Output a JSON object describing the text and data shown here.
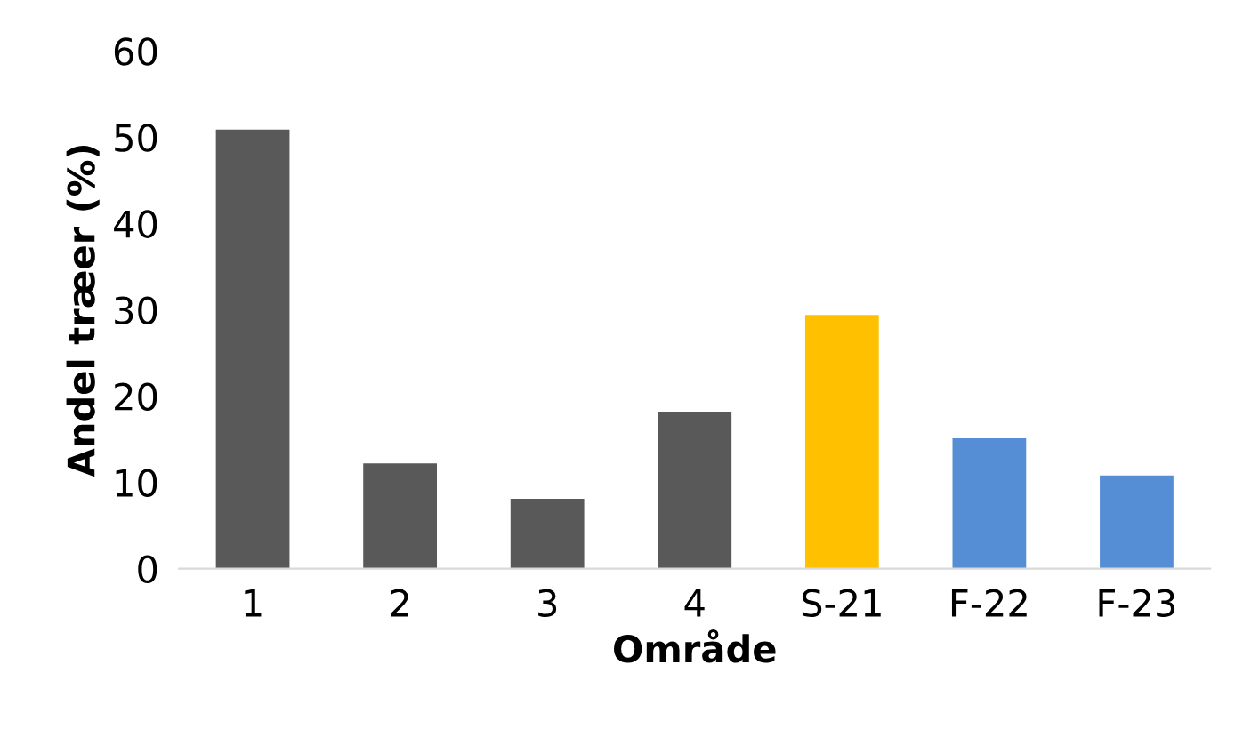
{
  "chart_data": {
    "type": "bar",
    "xlabel": "Område",
    "ylabel": "Andel træer (%)",
    "categories": [
      "1",
      "2",
      "3",
      "4",
      "S-21",
      "F-22",
      "F-23"
    ],
    "values": [
      50.9,
      12.2,
      8.1,
      18.2,
      29.4,
      15.1,
      10.8
    ],
    "colors": [
      "#595959",
      "#595959",
      "#595959",
      "#595959",
      "#ffc000",
      "#558ed5",
      "#558ed5"
    ],
    "ylim": [
      0,
      60
    ],
    "yticks": [
      0,
      10,
      20,
      30,
      40,
      50,
      60
    ],
    "grid": false,
    "legend": false
  }
}
